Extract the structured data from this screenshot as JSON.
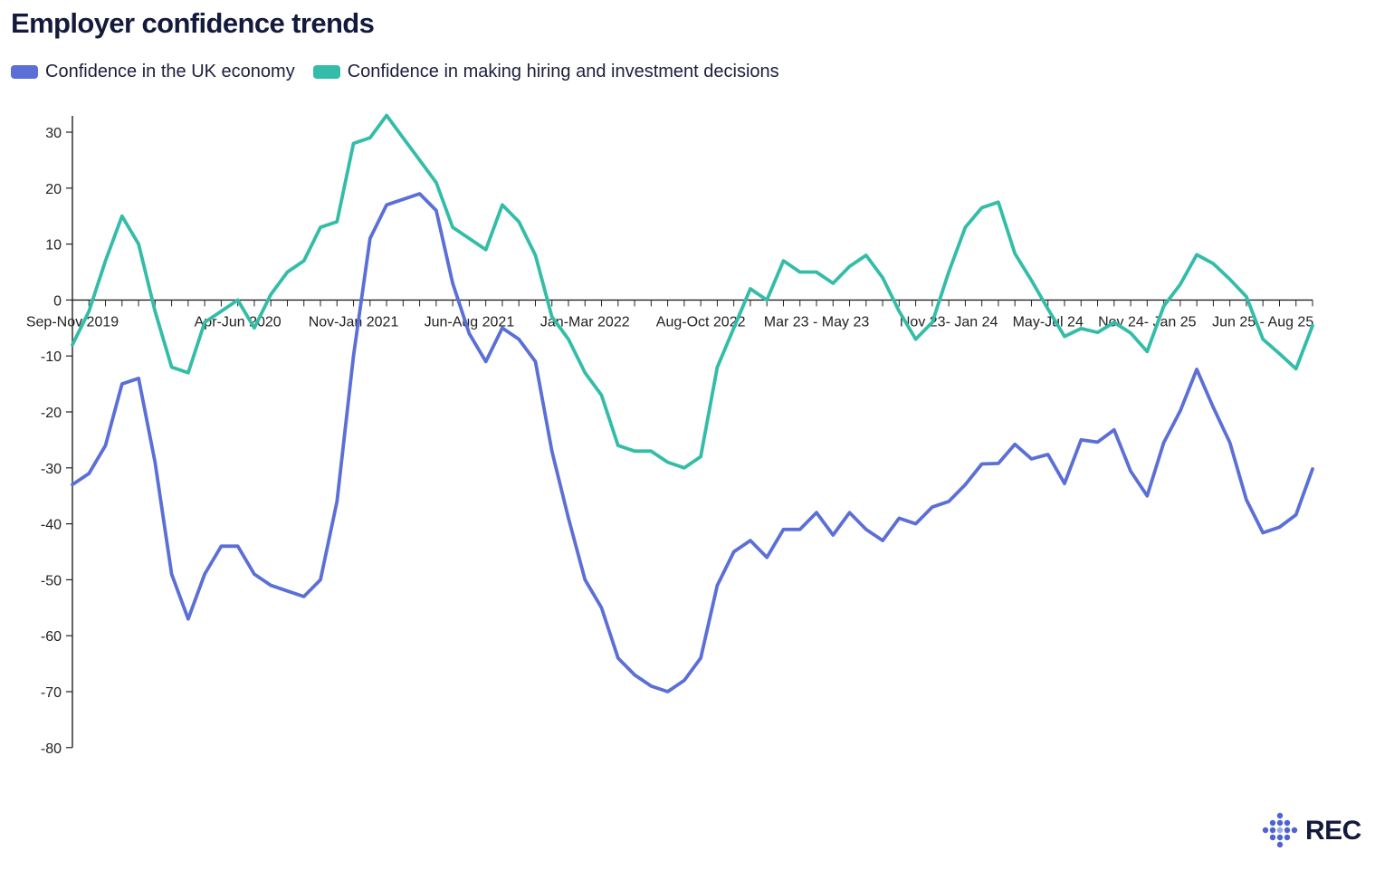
{
  "chart_data": {
    "type": "line",
    "title": "Employer confidence trends",
    "ylim": [
      -80,
      30
    ],
    "yticks": [
      30,
      20,
      10,
      0,
      -10,
      -20,
      -30,
      -40,
      -50,
      -60,
      -70,
      -80
    ],
    "x_tick_labels": [
      {
        "index": 0,
        "label": "Sep-Nov 2019"
      },
      {
        "index": 10,
        "label": "Apr-Jun 2020"
      },
      {
        "index": 17,
        "label": "Nov-Jan 2021"
      },
      {
        "index": 24,
        "label": "Jun-Aug 2021"
      },
      {
        "index": 31,
        "label": "Jan-Mar 2022"
      },
      {
        "index": 38,
        "label": "Aug-Oct 2022"
      },
      {
        "index": 45,
        "label": "Mar 23 - May 23"
      },
      {
        "index": 53,
        "label": "Nov 23- Jan 24"
      },
      {
        "index": 59,
        "label": "May-Jul 24"
      },
      {
        "index": 65,
        "label": "Nov 24- Jan 25"
      },
      {
        "index": 72,
        "label": "Jun 25 - Aug 25"
      }
    ],
    "series": [
      {
        "name": "Confidence in the UK economy",
        "color": "#5b6fd6",
        "values": [
          -33,
          -31,
          -26,
          -15,
          -14,
          -29,
          -49,
          -57,
          -49,
          -44,
          -44,
          -49,
          -51,
          -52,
          -53,
          -50,
          -36,
          -10,
          11,
          17,
          18,
          19,
          16,
          3,
          -6,
          -11,
          -5,
          -7,
          -11,
          -27,
          -39,
          -50,
          -55,
          -64,
          -67,
          -69,
          -70,
          -68,
          -64,
          -51,
          -45,
          -43,
          -46,
          -41,
          -41,
          -38,
          -42,
          -38,
          -41,
          -43,
          -39,
          -40,
          -37,
          -36,
          -33,
          -29.3,
          -29.2,
          -25.8,
          -28.4,
          -27.6,
          -32.8,
          -25,
          -25.4,
          -23.2,
          -30.6,
          -35,
          -25.5,
          -19.8,
          -12.4,
          -19.2,
          -25.5,
          -35.7,
          -41.6,
          -40.6,
          -38.4,
          -30.2
        ]
      },
      {
        "name": "Confidence in making hiring and investment decisions",
        "color": "#33bda8",
        "values": [
          -8,
          -2,
          7,
          15,
          10,
          -2,
          -12,
          -13,
          -4,
          -2,
          0,
          -5,
          1,
          5,
          7,
          13,
          14,
          28,
          29,
          33,
          29,
          25,
          21,
          13,
          11,
          9,
          17,
          14,
          8,
          -3,
          -7,
          -13,
          -17,
          -26,
          -27,
          -27,
          -29,
          -30,
          -28,
          -12,
          -5,
          2,
          0,
          7,
          5,
          5,
          3,
          6,
          8,
          4,
          -2,
          -7,
          -4,
          5,
          13,
          16.5,
          17.5,
          8.3,
          3.5,
          -1.6,
          -6.5,
          -5.1,
          -5.8,
          -4,
          -5.9,
          -9.2,
          -1.1,
          2.8,
          8.1,
          6.5,
          3.7,
          0.6,
          -7,
          -9.6,
          -12.3,
          -4.6
        ]
      }
    ]
  },
  "logo": {
    "text": "REC"
  }
}
